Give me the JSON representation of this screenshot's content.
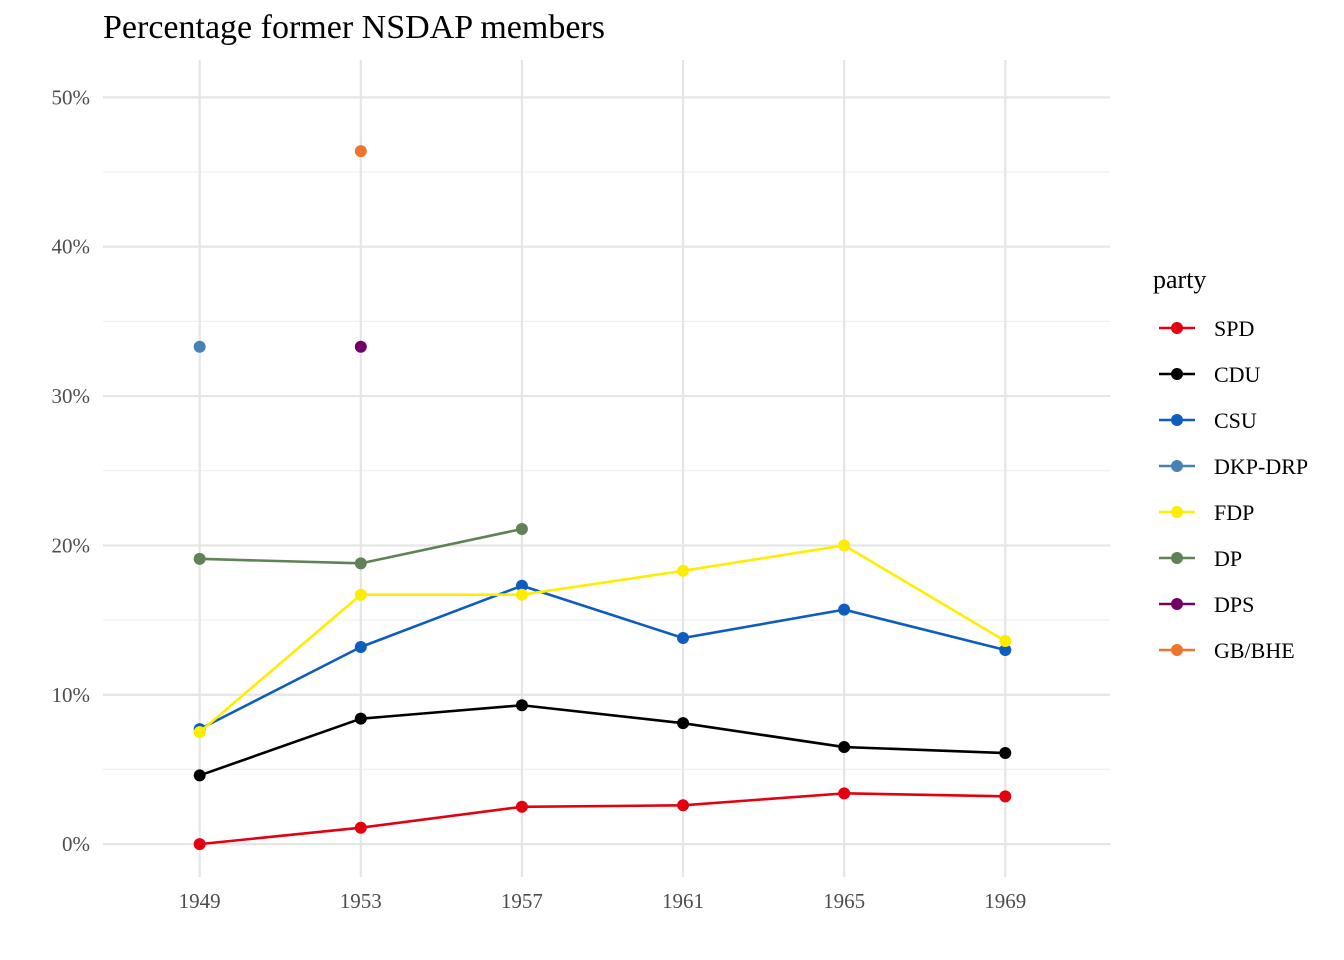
{
  "chart_data": {
    "type": "line",
    "title": "Percentage former NSDAP members",
    "xlabel": "",
    "ylabel": "",
    "x_ticks": [
      "1949",
      "1953",
      "1957",
      "1961",
      "1965",
      "1969"
    ],
    "x_range": [
      1946.6,
      1971.6
    ],
    "y_ticks": [
      {
        "value": 0,
        "label": "0%"
      },
      {
        "value": 10,
        "label": "10%"
      },
      {
        "value": 20,
        "label": "20%"
      },
      {
        "value": 30,
        "label": "30%"
      },
      {
        "value": 40,
        "label": "40%"
      },
      {
        "value": 50,
        "label": "50%"
      }
    ],
    "ylim": [
      -2.2,
      52.5
    ],
    "grid": true,
    "legend": {
      "title": "party",
      "position": "right"
    },
    "series": [
      {
        "name": "SPD",
        "color": "#e3000f",
        "points": [
          [
            1949,
            0.0
          ],
          [
            1953,
            1.1
          ],
          [
            1957,
            2.5
          ],
          [
            1961,
            2.6
          ],
          [
            1965,
            3.4
          ],
          [
            1969,
            3.2
          ]
        ]
      },
      {
        "name": "CDU",
        "color": "#000000",
        "points": [
          [
            1949,
            4.6
          ],
          [
            1953,
            8.4
          ],
          [
            1957,
            9.3
          ],
          [
            1961,
            8.1
          ],
          [
            1965,
            6.5
          ],
          [
            1969,
            6.1
          ]
        ]
      },
      {
        "name": "CSU",
        "color": "#0f5cbf",
        "points": [
          [
            1949,
            7.7
          ],
          [
            1953,
            13.2
          ],
          [
            1957,
            17.3
          ],
          [
            1961,
            13.8
          ],
          [
            1965,
            15.7
          ],
          [
            1969,
            13.0
          ]
        ]
      },
      {
        "name": "DKP-DRP",
        "color": "#4682b4",
        "points": [
          [
            1949,
            33.3
          ]
        ]
      },
      {
        "name": "FDP",
        "color": "#ffed00",
        "points": [
          [
            1949,
            7.5
          ],
          [
            1953,
            16.7
          ],
          [
            1957,
            16.7
          ],
          [
            1961,
            18.3
          ],
          [
            1965,
            20.0
          ],
          [
            1969,
            13.6
          ]
        ]
      },
      {
        "name": "DP",
        "color": "#5f8256",
        "points": [
          [
            1949,
            19.1
          ],
          [
            1953,
            18.8
          ],
          [
            1957,
            21.1
          ]
        ]
      },
      {
        "name": "DPS",
        "color": "#730068",
        "points": [
          [
            1953,
            33.3
          ]
        ]
      },
      {
        "name": "GB/BHE",
        "color": "#ef7430",
        "points": [
          [
            1953,
            46.4
          ]
        ]
      }
    ]
  }
}
